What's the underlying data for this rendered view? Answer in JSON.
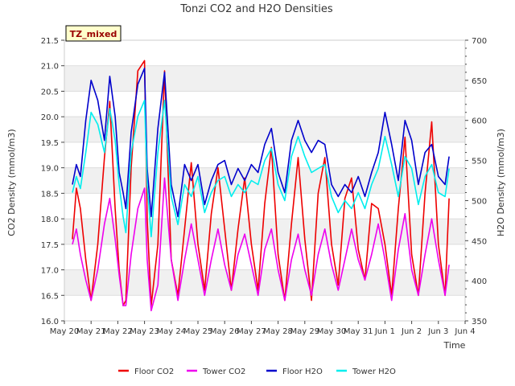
{
  "chart_data": {
    "type": "line",
    "title": "Tonzi CO2 and H2O Densities",
    "xlabel": "Time",
    "ylabel_left": "CO2 Density (mmol/m3)",
    "ylabel_right": "H2O Density (mmol/m3)",
    "badge": "TZ_mixed",
    "ylim_left": [
      16.0,
      21.5
    ],
    "ylim_right": [
      350,
      700
    ],
    "xlim": [
      0,
      15
    ],
    "x_tick_labels": [
      "May 20",
      "May 21",
      "May 22",
      "May 23",
      "May 24",
      "May 25",
      "May 26",
      "May 27",
      "May 28",
      "May 29",
      "May 30",
      "May 31",
      "Jun 1",
      "Jun 2",
      "Jun 3",
      "Jun 4"
    ],
    "y_left_ticks": [
      "16.0",
      "16.5",
      "17.0",
      "17.5",
      "18.0",
      "18.5",
      "19.0",
      "19.5",
      "20.0",
      "20.5",
      "21.0",
      "21.5"
    ],
    "y_right_ticks": [
      "350",
      "400",
      "450",
      "500",
      "550",
      "600",
      "650",
      "700"
    ],
    "series": [
      {
        "name": "Floor CO2",
        "axis": "left",
        "color": "#ee0000",
        "x": [
          0.3,
          0.45,
          0.6,
          0.8,
          1.0,
          1.25,
          1.5,
          1.7,
          1.9,
          2.05,
          2.2,
          2.3,
          2.5,
          2.75,
          3.0,
          3.1,
          3.25,
          3.5,
          3.75,
          4.0,
          4.25,
          4.5,
          4.75,
          5.0,
          5.25,
          5.5,
          5.75,
          6.0,
          6.25,
          6.5,
          6.75,
          7.0,
          7.25,
          7.5,
          7.75,
          8.0,
          8.25,
          8.5,
          8.75,
          9.0,
          9.25,
          9.5,
          9.75,
          10.0,
          10.25,
          10.5,
          10.75,
          11.0,
          11.25,
          11.5,
          11.75,
          12.0,
          12.25,
          12.5,
          12.75,
          13.0,
          13.25,
          13.5,
          13.75,
          14.0,
          14.25,
          14.4
        ],
        "values": [
          17.6,
          18.6,
          18.2,
          17.2,
          16.4,
          17.5,
          19.2,
          20.3,
          18.2,
          17.0,
          16.3,
          16.4,
          19.0,
          20.9,
          21.1,
          18.0,
          16.3,
          17.5,
          20.9,
          17.2,
          16.5,
          17.8,
          19.1,
          17.5,
          16.6,
          18.1,
          19.0,
          17.8,
          16.6,
          17.8,
          18.8,
          17.5,
          16.6,
          18.3,
          19.4,
          17.3,
          16.4,
          17.9,
          19.2,
          17.6,
          16.4,
          18.5,
          19.2,
          17.5,
          16.7,
          18.4,
          18.8,
          17.4,
          16.8,
          18.3,
          18.2,
          17.5,
          16.5,
          18.2,
          19.6,
          17.3,
          16.5,
          18.5,
          19.9,
          17.5,
          16.5,
          18.4
        ]
      },
      {
        "name": "Tower CO2",
        "axis": "left",
        "color": "#ee00ee",
        "x": [
          0.3,
          0.45,
          0.6,
          0.8,
          1.0,
          1.25,
          1.5,
          1.7,
          1.9,
          2.05,
          2.2,
          2.3,
          2.5,
          2.75,
          3.0,
          3.1,
          3.25,
          3.5,
          3.75,
          4.0,
          4.25,
          4.5,
          4.75,
          5.0,
          5.25,
          5.5,
          5.75,
          6.0,
          6.25,
          6.5,
          6.75,
          7.0,
          7.25,
          7.5,
          7.75,
          8.0,
          8.25,
          8.5,
          8.75,
          9.0,
          9.25,
          9.5,
          9.75,
          10.0,
          10.25,
          10.5,
          10.75,
          11.0,
          11.25,
          11.5,
          11.75,
          12.0,
          12.25,
          12.5,
          12.75,
          13.0,
          13.25,
          13.5,
          13.75,
          14.0,
          14.25,
          14.4
        ],
        "values": [
          17.5,
          17.8,
          17.3,
          16.8,
          16.4,
          17.0,
          17.9,
          18.4,
          17.6,
          16.9,
          16.3,
          16.3,
          17.3,
          18.2,
          18.6,
          17.2,
          16.2,
          16.7,
          18.8,
          17.2,
          16.4,
          17.2,
          17.9,
          17.2,
          16.5,
          17.2,
          17.8,
          17.1,
          16.6,
          17.3,
          17.7,
          17.1,
          16.5,
          17.4,
          17.8,
          17.0,
          16.4,
          17.2,
          17.7,
          17.0,
          16.5,
          17.3,
          17.8,
          17.1,
          16.6,
          17.2,
          17.8,
          17.2,
          16.8,
          17.3,
          17.9,
          17.2,
          16.4,
          17.4,
          18.1,
          17.0,
          16.5,
          17.3,
          18.0,
          17.2,
          16.5,
          17.1
        ]
      },
      {
        "name": "Floor H2O",
        "axis": "right",
        "color": "#0000cc",
        "x": [
          0.3,
          0.45,
          0.6,
          0.8,
          1.0,
          1.25,
          1.5,
          1.7,
          1.9,
          2.05,
          2.2,
          2.3,
          2.5,
          2.75,
          3.0,
          3.1,
          3.25,
          3.5,
          3.75,
          4.0,
          4.25,
          4.5,
          4.75,
          5.0,
          5.25,
          5.5,
          5.75,
          6.0,
          6.25,
          6.5,
          6.75,
          7.0,
          7.25,
          7.5,
          7.75,
          8.0,
          8.25,
          8.5,
          8.75,
          9.0,
          9.25,
          9.5,
          9.75,
          10.0,
          10.25,
          10.5,
          10.75,
          11.0,
          11.25,
          11.5,
          11.75,
          12.0,
          12.25,
          12.5,
          12.75,
          13.0,
          13.25,
          13.5,
          13.75,
          14.0,
          14.25,
          14.4
        ],
        "values": [
          520,
          545,
          530,
          600,
          650,
          625,
          575,
          655,
          605,
          535,
          510,
          490,
          585,
          645,
          665,
          540,
          480,
          590,
          660,
          520,
          480,
          545,
          525,
          545,
          495,
          525,
          545,
          550,
          520,
          540,
          525,
          545,
          535,
          570,
          590,
          535,
          510,
          575,
          600,
          575,
          560,
          575,
          570,
          520,
          505,
          520,
          510,
          530,
          505,
          535,
          560,
          610,
          570,
          525,
          600,
          575,
          520,
          560,
          570,
          530,
          520,
          555
        ]
      },
      {
        "name": "Tower H2O",
        "axis": "right",
        "color": "#00eeee",
        "x": [
          0.3,
          0.45,
          0.6,
          0.8,
          1.0,
          1.25,
          1.5,
          1.7,
          1.9,
          2.05,
          2.2,
          2.3,
          2.5,
          2.75,
          3.0,
          3.1,
          3.25,
          3.5,
          3.75,
          4.0,
          4.25,
          4.5,
          4.75,
          5.0,
          5.25,
          5.5,
          5.75,
          6.0,
          6.25,
          6.5,
          6.75,
          7.0,
          7.25,
          7.5,
          7.75,
          8.0,
          8.25,
          8.5,
          8.75,
          9.0,
          9.25,
          9.5,
          9.75,
          10.0,
          10.25,
          10.5,
          10.75,
          11.0,
          11.25,
          11.5,
          11.75,
          12.0,
          12.25,
          12.5,
          12.75,
          13.0,
          13.25,
          13.5,
          13.75,
          14.0,
          14.25,
          14.4
        ],
        "values": [
          510,
          530,
          515,
          560,
          610,
          595,
          560,
          615,
          575,
          520,
          480,
          460,
          560,
          605,
          625,
          520,
          455,
          560,
          625,
          505,
          470,
          520,
          505,
          530,
          485,
          510,
          525,
          530,
          505,
          520,
          510,
          525,
          520,
          550,
          565,
          520,
          500,
          555,
          580,
          555,
          535,
          540,
          545,
          505,
          485,
          500,
          490,
          510,
          490,
          520,
          540,
          580,
          545,
          505,
          555,
          540,
          495,
          530,
          545,
          510,
          505,
          540
        ]
      }
    ]
  }
}
